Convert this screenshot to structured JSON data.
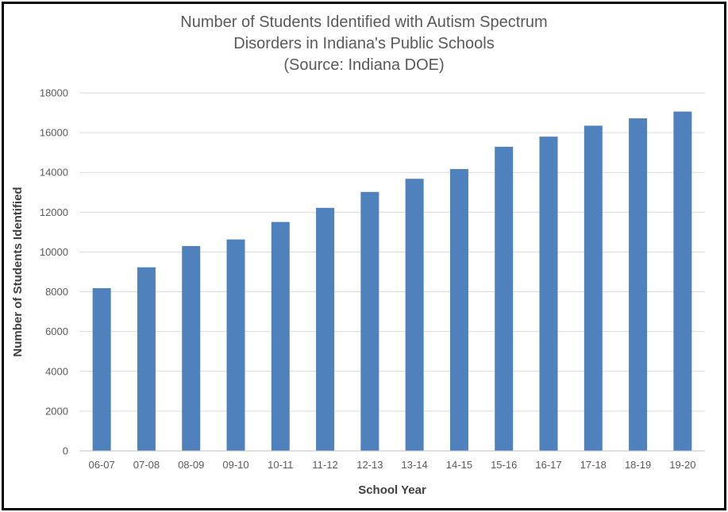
{
  "chart_data": {
    "type": "bar",
    "title_lines": [
      "Number of Students Identified with Autism Spectrum",
      "Disorders in Indiana's Public Schools",
      "(Source: Indiana DOE)"
    ],
    "xlabel": "School Year",
    "ylabel": "Number of Students Identified",
    "categories": [
      "06-07",
      "07-08",
      "08-09",
      "09-10",
      "10-11",
      "11-12",
      "12-13",
      "13-14",
      "14-15",
      "15-16",
      "16-17",
      "17-18",
      "18-19",
      "19-20"
    ],
    "values": [
      8180,
      9230,
      10300,
      10630,
      11510,
      12220,
      13020,
      13680,
      14170,
      15290,
      15800,
      16350,
      16720,
      17060
    ],
    "ylim": [
      0,
      18000
    ],
    "yticks": [
      "0",
      "2000",
      "4000",
      "6000",
      "8000",
      "10000",
      "12000",
      "14000",
      "16000",
      "18000"
    ],
    "grid": true,
    "legend": "none",
    "bar_color": "#4f81bd",
    "grid_color": "#d9d9d9",
    "axis_color": "#bfbfbf"
  }
}
